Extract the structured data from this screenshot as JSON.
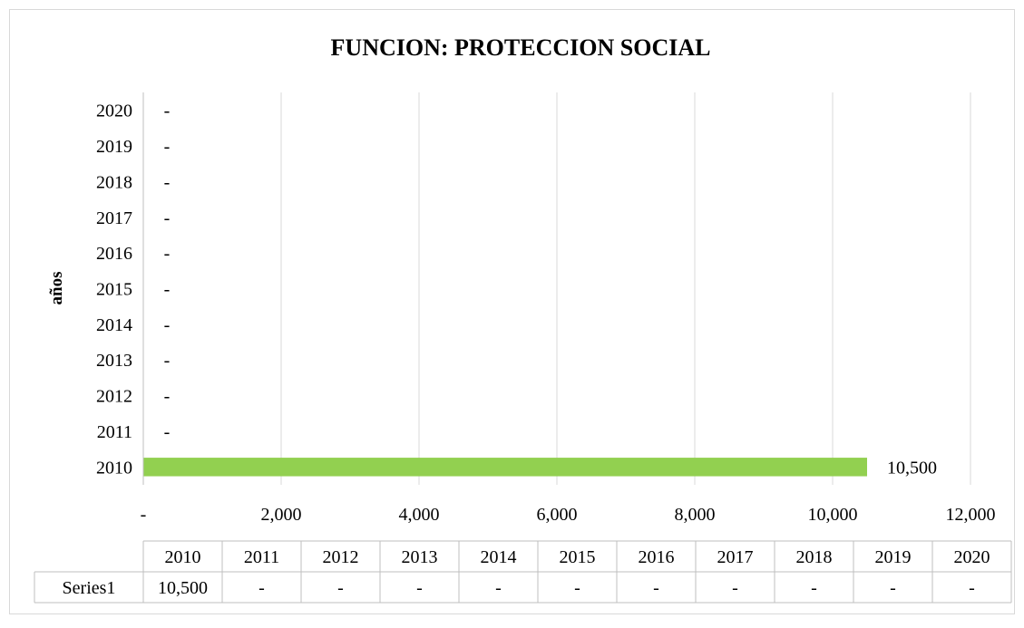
{
  "chart_data": {
    "type": "bar",
    "orientation": "horizontal",
    "title": "FUNCION: PROTECCION SOCIAL",
    "xlabel": "",
    "ylabel": "años",
    "categories": [
      "2010",
      "2011",
      "2012",
      "2013",
      "2014",
      "2015",
      "2016",
      "2017",
      "2018",
      "2019",
      "2020"
    ],
    "series": [
      {
        "name": "Series1",
        "values": [
          10500,
          0,
          0,
          0,
          0,
          0,
          0,
          0,
          0,
          0,
          0
        ],
        "labels": [
          "10,500",
          "-",
          "-",
          "-",
          "-",
          "-",
          "-",
          "-",
          "-",
          "-",
          "-"
        ],
        "color": "#92d050"
      }
    ],
    "xlim": [
      0,
      12000
    ],
    "xticks": [
      0,
      2000,
      4000,
      6000,
      8000,
      10000,
      12000
    ],
    "xtick_labels": [
      "-",
      "2,000",
      "4,000",
      "6,000",
      "8,000",
      "10,000",
      "12,000"
    ],
    "grid": "vertical",
    "data_table": true,
    "legend": "none"
  }
}
